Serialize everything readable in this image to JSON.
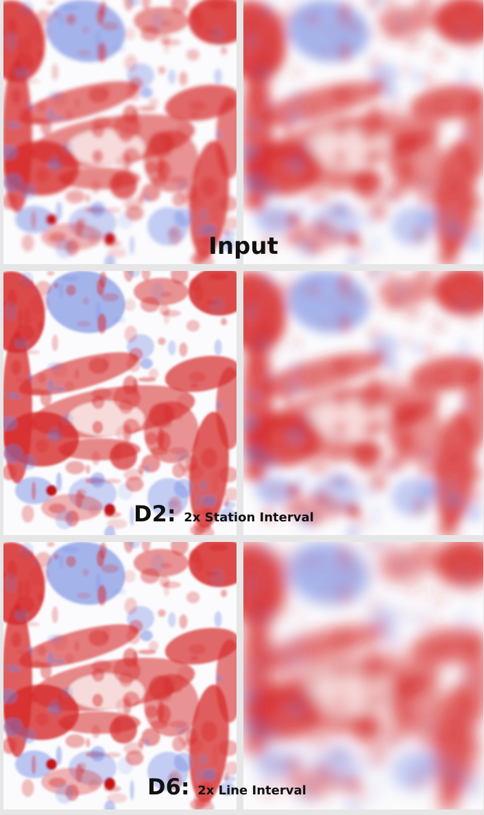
{
  "rows": [
    {
      "label": "Input"
    },
    {
      "label": "D2:",
      "caption": "2x Station Interval"
    },
    {
      "label": "D6:",
      "caption": "2x Line Interval"
    }
  ]
}
